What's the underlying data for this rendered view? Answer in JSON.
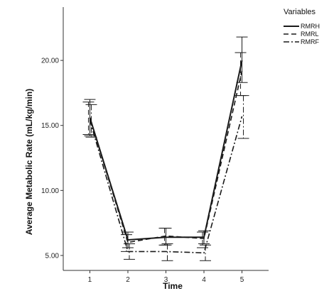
{
  "chart_data": {
    "type": "line",
    "title": "",
    "xlabel": "Time",
    "ylabel": "Average Metabolic Rate (mL/kg/min)",
    "categories": [
      "1",
      "2",
      "3",
      "4",
      "5"
    ],
    "x": [
      1,
      2,
      3,
      4,
      5
    ],
    "xlim": [
      0.3,
      5.7
    ],
    "ylim": [
      3.85,
      24.1
    ],
    "y_ticks": [
      5.0,
      10.0,
      15.0,
      20.0
    ],
    "y_tick_labels": [
      "5.00",
      "10.00",
      "15.00",
      "20.00"
    ],
    "grid": false,
    "legend": {
      "title": "Variables",
      "placement": "top-right",
      "entries": [
        "RMRH",
        "RMRL",
        "RMRF"
      ]
    },
    "series": [
      {
        "name": "RMRH",
        "line_style": "solid",
        "values": [
          15.6,
          6.2,
          6.4,
          6.4,
          20.0
        ],
        "error_low": [
          14.2,
          5.6,
          5.8,
          5.9,
          18.3
        ],
        "error_high": [
          17.0,
          6.8,
          7.1,
          6.9,
          21.8
        ]
      },
      {
        "name": "RMRL",
        "line_style": "dashed",
        "values": [
          15.6,
          6.0,
          6.5,
          6.3,
          19.2
        ],
        "error_low": [
          14.3,
          5.3,
          5.8,
          5.6,
          17.3
        ],
        "error_high": [
          16.8,
          6.6,
          7.1,
          6.8,
          20.6
        ]
      },
      {
        "name": "RMRF",
        "line_style": "dash-dot",
        "values": [
          15.4,
          5.3,
          5.3,
          5.2,
          15.7
        ],
        "error_low": [
          14.1,
          4.7,
          4.6,
          4.6,
          14.0
        ],
        "error_high": [
          16.6,
          5.9,
          5.9,
          5.8,
          17.3
        ]
      }
    ],
    "colors": {
      "lines": "#1a1a1a",
      "axes": "#333333"
    }
  }
}
